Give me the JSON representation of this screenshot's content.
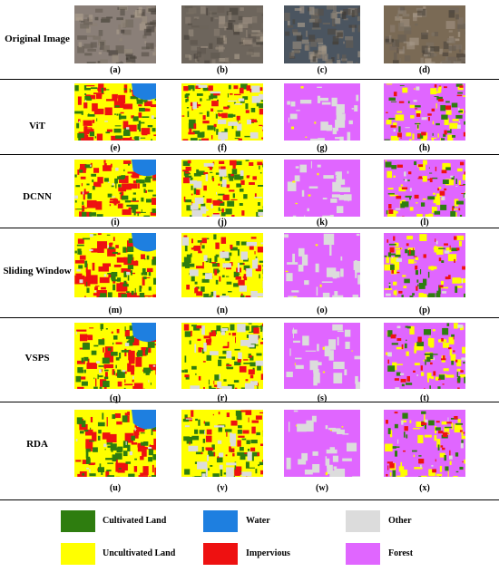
{
  "rows": [
    {
      "label": "Original Image",
      "captions": [
        "(a)",
        "(b)",
        "(c)",
        "(d)"
      ]
    },
    {
      "label": "ViT",
      "captions": [
        "(e)",
        "(f)",
        "(g)",
        "(h)"
      ]
    },
    {
      "label": "DCNN",
      "captions": [
        "(i)",
        "(j)",
        "(k)",
        "(l)"
      ]
    },
    {
      "label": "Sliding Window",
      "captions": [
        "(m)",
        "(n)",
        "(o)",
        "(p)"
      ]
    },
    {
      "label": "VSPS",
      "captions": [
        "(q)",
        "(r)",
        "(s)",
        "(t)"
      ]
    },
    {
      "label": "RDA",
      "captions": [
        "(u)",
        "(v)",
        "(w)",
        "(x)"
      ]
    }
  ],
  "legend": [
    {
      "label": "Cultivated Land",
      "color": "#2e7d0f"
    },
    {
      "label": "Water",
      "color": "#1e7fe0"
    },
    {
      "label": "Other",
      "color": "#dcdcdc"
    },
    {
      "label": "Uncultivated Land",
      "color": "#ffff00"
    },
    {
      "label": "Impervious",
      "color": "#ee1111"
    },
    {
      "label": "Forest",
      "color": "#e066ff"
    }
  ]
}
